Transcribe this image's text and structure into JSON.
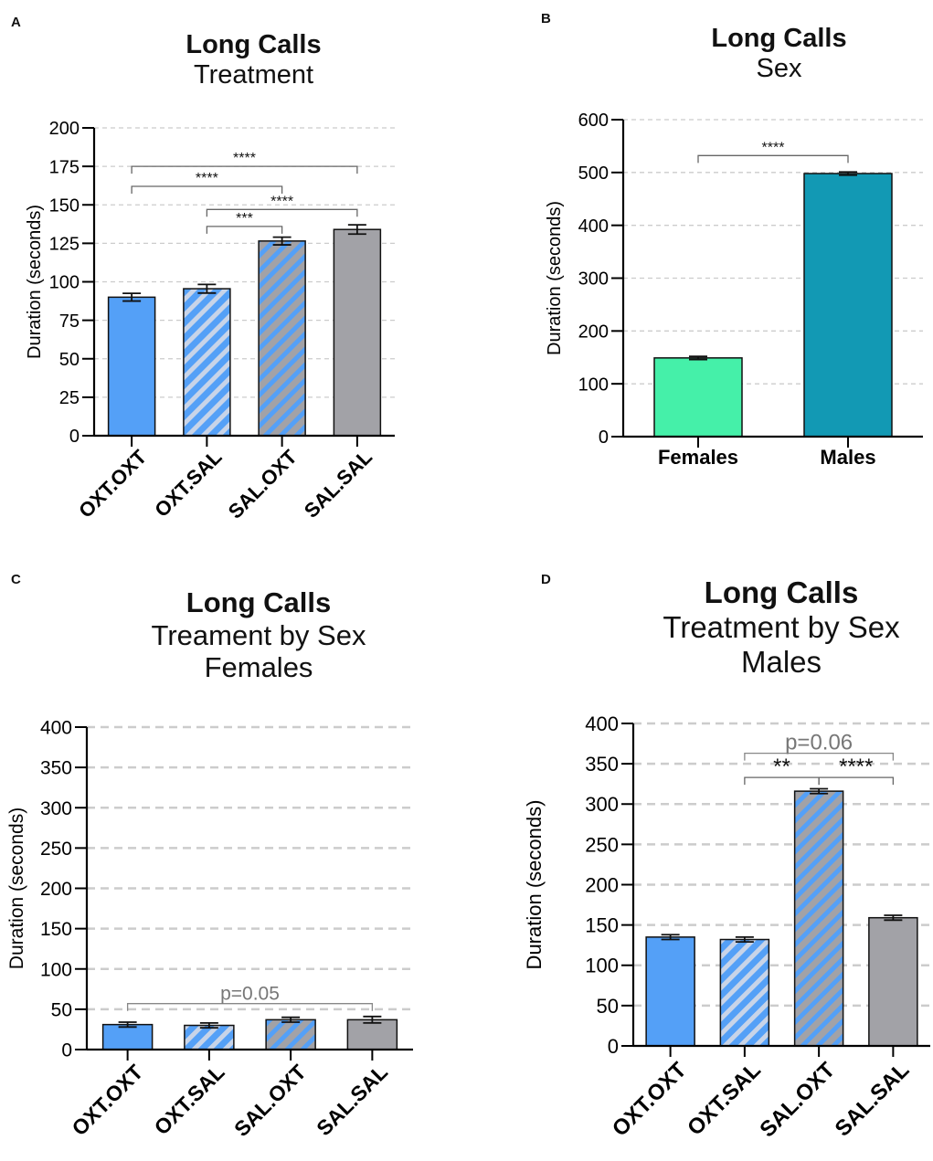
{
  "colors": {
    "oxt": "#54a0f7",
    "sal": "#a2a2a7",
    "stripe_light": "#c8d4e8",
    "females": "#45f0a9",
    "males": "#1299b4",
    "grid": "#cccccc",
    "annotation_gray": "#777777"
  },
  "chart_data": [
    {
      "id": "A",
      "type": "bar",
      "panel_label": "A",
      "title": "Long Calls",
      "subtitle_lines": [
        "Treatment"
      ],
      "ylabel": "Duration (seconds)",
      "xlabel": "",
      "ylim": [
        0,
        200
      ],
      "yticks": [
        0,
        25,
        50,
        75,
        100,
        125,
        150,
        175,
        200
      ],
      "grid": true,
      "categories": [
        "OXT.OXT",
        "OXT.SAL",
        "SAL.OXT",
        "SAL.SAL"
      ],
      "values": [
        90,
        95.5,
        126.5,
        134
      ],
      "errors": [
        2.5,
        2.8,
        2.5,
        3
      ],
      "fills": [
        "oxt",
        "oxt-stripe",
        "sal-stripe",
        "sal"
      ],
      "rotated_labels": true,
      "brackets": [
        {
          "from": 0,
          "to": 3,
          "y": 175,
          "label": "****"
        },
        {
          "from": 0,
          "to": 2,
          "y": 162,
          "label": "****"
        },
        {
          "from": 1,
          "to": 3,
          "y": 147,
          "label": "****"
        },
        {
          "from": 1,
          "to": 2,
          "y": 136,
          "label": "***"
        }
      ]
    },
    {
      "id": "B",
      "type": "bar",
      "panel_label": "B",
      "title": "Long Calls",
      "subtitle_lines": [
        "Sex"
      ],
      "ylabel": "Duration (seconds)",
      "xlabel": "",
      "ylim": [
        0,
        600
      ],
      "yticks": [
        0,
        100,
        200,
        300,
        400,
        500,
        600
      ],
      "grid": true,
      "categories": [
        "Females",
        "Males"
      ],
      "values": [
        149,
        498
      ],
      "errors": [
        3,
        3
      ],
      "fills": [
        "females",
        "males"
      ],
      "rotated_labels": false,
      "brackets": [
        {
          "from": 0,
          "to": 1,
          "y": 532,
          "label": "****"
        }
      ]
    },
    {
      "id": "C",
      "type": "bar",
      "panel_label": "C",
      "title": "Long Calls",
      "subtitle_lines": [
        "Treament by Sex",
        "Females"
      ],
      "ylabel": "Duration (seconds)",
      "xlabel": "",
      "ylim": [
        0,
        400
      ],
      "yticks": [
        0,
        50,
        100,
        150,
        200,
        250,
        300,
        350,
        400
      ],
      "grid": true,
      "categories": [
        "OXT.OXT",
        "OXT.SAL",
        "SAL.OXT",
        "SAL.SAL"
      ],
      "values": [
        31,
        30,
        37,
        37
      ],
      "errors": [
        3,
        3,
        3,
        4
      ],
      "fills": [
        "oxt",
        "oxt-stripe",
        "sal-stripe",
        "sal"
      ],
      "rotated_labels": true,
      "brackets": [
        {
          "from": 0,
          "to": 3,
          "y": 57,
          "label": "p=0.05",
          "gray": true
        }
      ]
    },
    {
      "id": "D",
      "type": "bar",
      "panel_label": "D",
      "title": "Long Calls",
      "subtitle_lines": [
        "Treatment by Sex",
        "Males"
      ],
      "ylabel": "Duration (seconds)",
      "xlabel": "",
      "ylim": [
        0,
        400
      ],
      "yticks": [
        0,
        50,
        100,
        150,
        200,
        250,
        300,
        350,
        400
      ],
      "grid": true,
      "categories": [
        "OXT.OXT",
        "OXT.SAL",
        "SAL.OXT",
        "SAL.SAL"
      ],
      "values": [
        135,
        132,
        316,
        159
      ],
      "errors": [
        3,
        3,
        3,
        3
      ],
      "fills": [
        "oxt",
        "oxt-stripe",
        "sal-stripe",
        "sal"
      ],
      "rotated_labels": true,
      "brackets": [
        {
          "from": 1,
          "to": 3,
          "y": 363,
          "label": "p=0.06",
          "gray": true
        },
        {
          "from": 1,
          "to": 2,
          "y": 333,
          "label": "**"
        },
        {
          "from": 2,
          "to": 3,
          "y": 333,
          "label": "****"
        }
      ]
    }
  ]
}
